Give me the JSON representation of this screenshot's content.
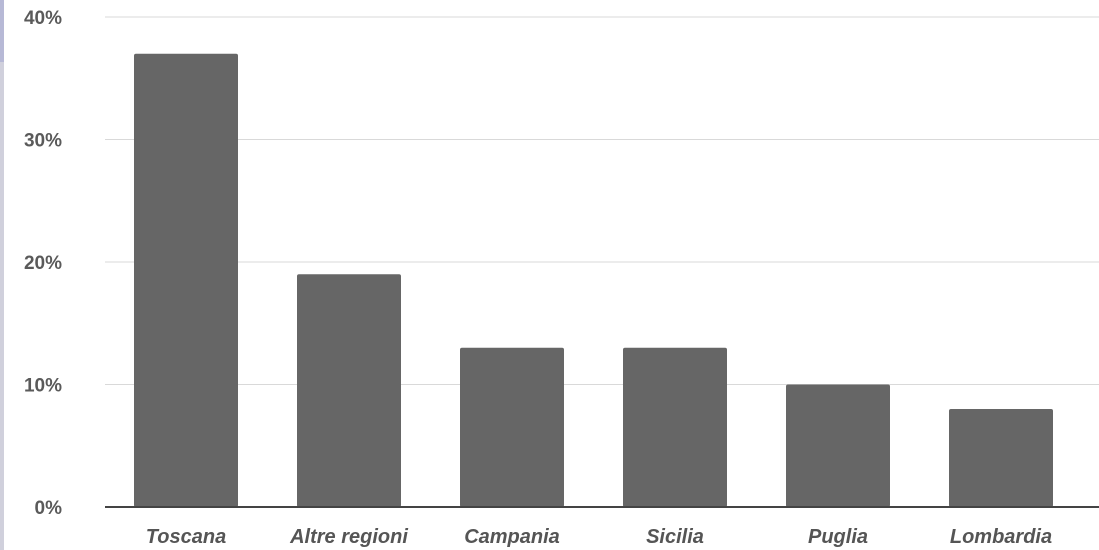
{
  "chart_data": {
    "type": "bar",
    "categories": [
      "Toscana",
      "Altre regioni",
      "Campania",
      "Sicilia",
      "Puglia",
      "Lombardia"
    ],
    "values": [
      37,
      19,
      13,
      13,
      10,
      8
    ],
    "y_ticks": [
      "0%",
      "10%",
      "20%",
      "30%",
      "40%"
    ],
    "ylim": [
      0,
      40
    ],
    "grid": true,
    "bar_color": "#666666",
    "grid_color": "#d9d9d9",
    "axis_color": "#444444"
  }
}
